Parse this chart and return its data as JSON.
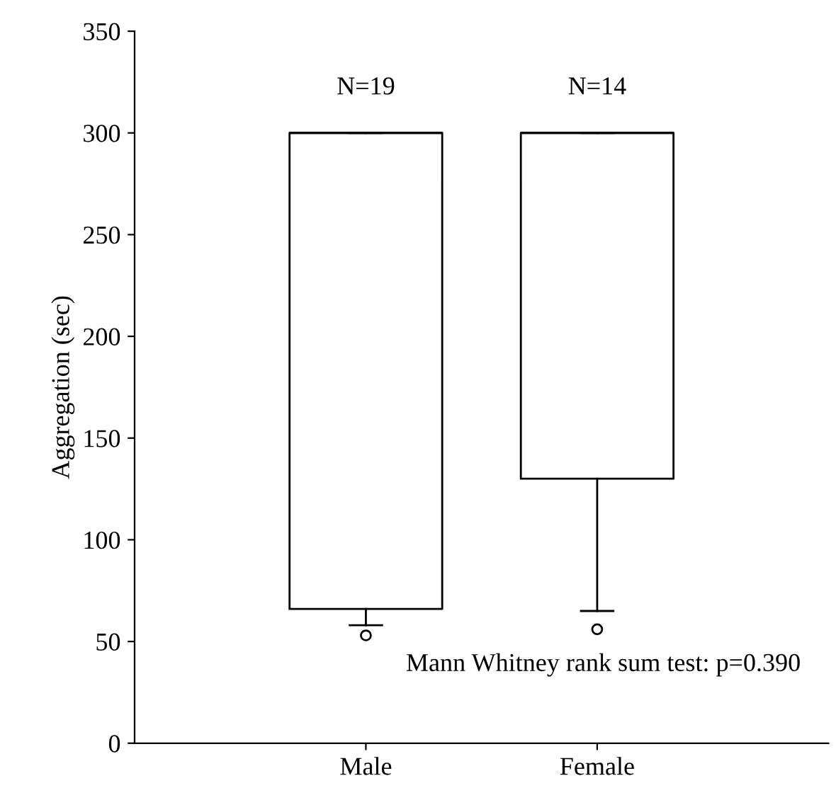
{
  "chart_data": {
    "type": "box",
    "ylabel": "Aggregation (sec)",
    "categories": [
      "Male",
      "Female"
    ],
    "boxes": [
      {
        "low": 58,
        "q1": 66,
        "median": 300,
        "q3": 300,
        "high": 300,
        "outliers": [
          53
        ]
      },
      {
        "low": 65,
        "q1": 130,
        "median": 300,
        "q3": 300,
        "high": 300,
        "outliers": [
          56
        ]
      }
    ],
    "color": "#000000",
    "ylim": [
      0,
      350
    ],
    "yticks": [
      0,
      50,
      100,
      150,
      200,
      250,
      300,
      350
    ],
    "annotations": [
      "N=19",
      "N=14",
      "Mann Whitney rank sum test: p=0.390"
    ],
    "grid": false
  }
}
